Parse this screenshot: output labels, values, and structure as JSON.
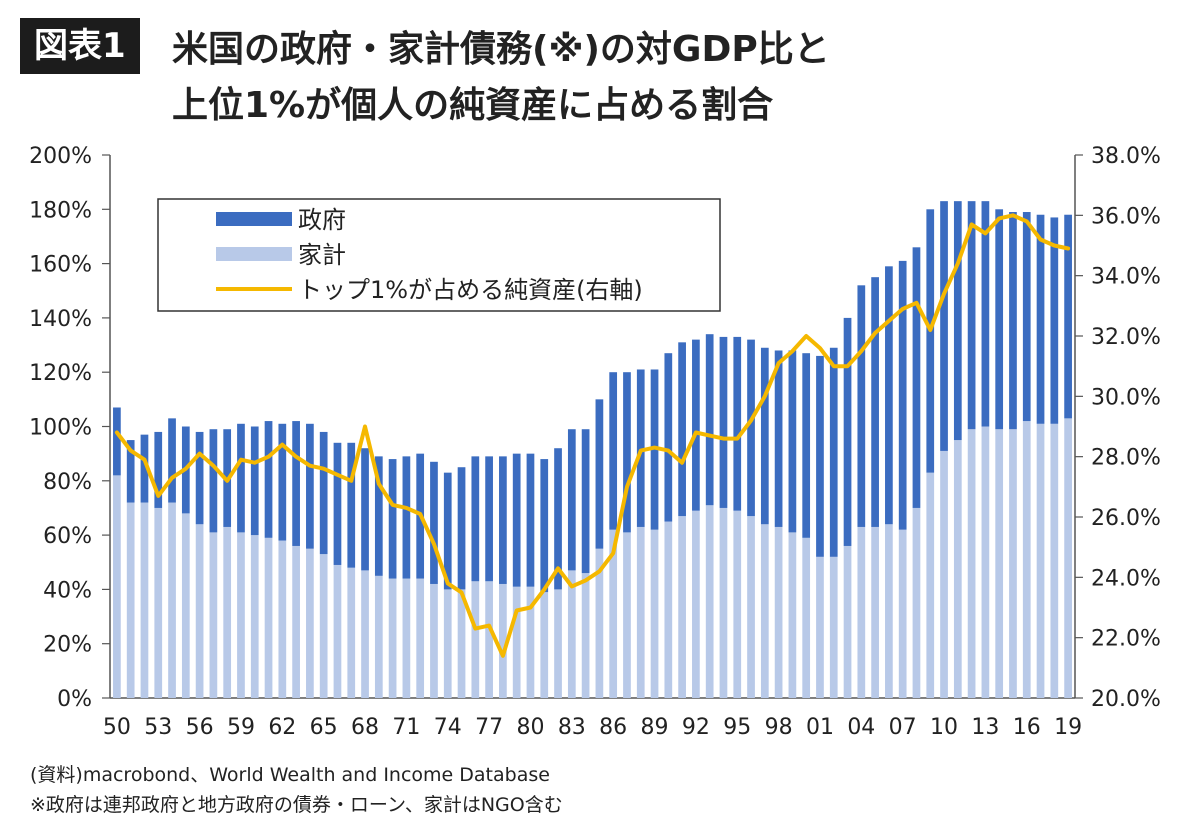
{
  "header": {
    "badge": "図表1",
    "title_line1": "米国の政府・家計債務(※)の対GDP比と",
    "title_line2": "上位1%が個人の純資産に占める割合"
  },
  "notes": {
    "source": "(資料)macrobond、World Wealth and Income Database",
    "footnote": "※政府は連邦政府と地方政府の債券・ローン、家計はNGO含む"
  },
  "chart_data": {
    "type": "bar",
    "stacked": true,
    "x_tick_labels": [
      "50",
      "53",
      "56",
      "59",
      "62",
      "65",
      "68",
      "71",
      "74",
      "77",
      "80",
      "83",
      "86",
      "89",
      "92",
      "95",
      "98",
      "01",
      "04",
      "07",
      "10",
      "13",
      "16",
      "19"
    ],
    "years": [
      1950,
      1951,
      1952,
      1953,
      1954,
      1955,
      1956,
      1957,
      1958,
      1959,
      1960,
      1961,
      1962,
      1963,
      1964,
      1965,
      1966,
      1967,
      1968,
      1969,
      1970,
      1971,
      1972,
      1973,
      1974,
      1975,
      1976,
      1977,
      1978,
      1979,
      1980,
      1981,
      1982,
      1983,
      1984,
      1985,
      1986,
      1987,
      1988,
      1989,
      1990,
      1991,
      1992,
      1993,
      1994,
      1995,
      1996,
      1997,
      1998,
      1999,
      2000,
      2001,
      2002,
      2003,
      2004,
      2005,
      2006,
      2007,
      2008,
      2009,
      2010,
      2011,
      2012,
      2013,
      2014,
      2015,
      2016,
      2017,
      2018,
      2019
    ],
    "y_left": {
      "min": 0,
      "max": 200,
      "step": 20,
      "tick_labels": [
        "0%",
        "20%",
        "40%",
        "60%",
        "80%",
        "100%",
        "120%",
        "140%",
        "160%",
        "180%",
        "200%"
      ]
    },
    "y_right": {
      "min": 20,
      "max": 38,
      "step": 2,
      "tick_labels": [
        "20.0%",
        "22.0%",
        "24.0%",
        "26.0%",
        "28.0%",
        "30.0%",
        "32.0%",
        "34.0%",
        "36.0%",
        "38.0%"
      ]
    },
    "legend": {
      "position": "top-left",
      "entries": [
        "政府",
        "家計",
        "トップ1%が占める純資産(右軸)"
      ]
    },
    "colors": {
      "government": "#3b6cc0",
      "household": "#b8c9e8",
      "top1": "#f5b800",
      "axis": "#555555"
    },
    "series": [
      {
        "name": "政府",
        "axis": "left",
        "values": [
          25,
          23,
          25,
          28,
          31,
          32,
          34,
          38,
          36,
          40,
          40,
          43,
          43,
          46,
          46,
          45,
          45,
          46,
          45,
          44,
          44,
          45,
          46,
          45,
          43,
          45,
          46,
          46,
          47,
          49,
          49,
          49,
          52,
          52,
          53,
          55,
          58,
          59,
          58,
          59,
          62,
          64,
          63,
          63,
          63,
          64,
          65,
          65,
          65,
          67,
          68,
          74,
          77,
          84,
          89,
          92,
          95,
          99,
          96,
          97,
          92,
          88,
          84,
          83,
          81,
          80,
          77,
          77,
          76,
          75
        ]
      },
      {
        "name": "家計",
        "axis": "left",
        "values": [
          82,
          72,
          72,
          70,
          72,
          68,
          64,
          61,
          63,
          61,
          60,
          59,
          58,
          56,
          55,
          53,
          49,
          48,
          47,
          45,
          44,
          44,
          44,
          42,
          40,
          40,
          43,
          43,
          42,
          41,
          41,
          39,
          40,
          47,
          46,
          55,
          62,
          61,
          63,
          62,
          65,
          67,
          69,
          71,
          70,
          69,
          67,
          64,
          63,
          61,
          59,
          52,
          52,
          56,
          63,
          63,
          64,
          62,
          70,
          83,
          91,
          95,
          99,
          100,
          99,
          99,
          102,
          101,
          101,
          103
        ]
      },
      {
        "name": "トップ1%が占める純資産(右軸)",
        "axis": "right",
        "values": [
          28.8,
          28.2,
          27.9,
          26.7,
          27.3,
          27.6,
          28.1,
          27.7,
          27.2,
          27.9,
          27.8,
          28.0,
          28.4,
          28.0,
          27.7,
          27.6,
          27.4,
          27.2,
          29.0,
          27.1,
          26.4,
          26.3,
          26.1,
          25.1,
          23.8,
          23.5,
          22.3,
          22.4,
          21.4,
          22.9,
          23.0,
          23.6,
          24.3,
          23.7,
          23.9,
          24.2,
          24.8,
          27.0,
          28.2,
          28.3,
          28.2,
          27.8,
          28.8,
          28.7,
          28.6,
          28.6,
          29.2,
          30.0,
          31.1,
          31.5,
          32.0,
          31.6,
          31.0,
          31.0,
          31.5,
          32.1,
          32.5,
          32.9,
          33.1,
          32.2,
          33.4,
          34.4,
          35.7,
          35.4,
          35.9,
          36.0,
          35.8,
          35.2,
          35.0,
          34.9
        ]
      }
    ]
  }
}
